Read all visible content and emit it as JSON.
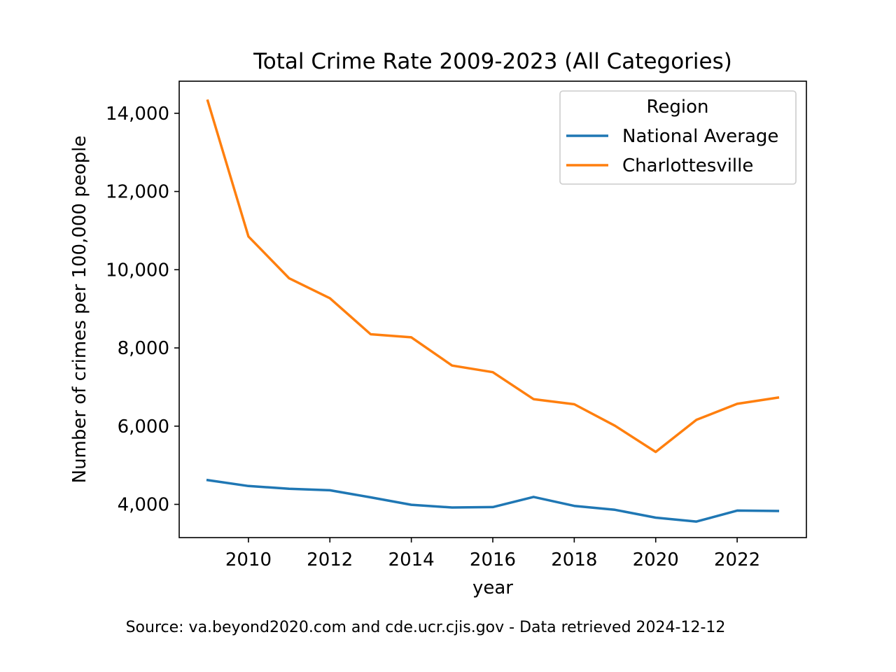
{
  "chart_data": {
    "type": "line",
    "title": "Total Crime Rate 2009-2023 (All Categories)",
    "xlabel": "year",
    "ylabel": "Number of crimes per 100,000 people",
    "x": [
      2009,
      2010,
      2011,
      2012,
      2013,
      2014,
      2015,
      2016,
      2017,
      2018,
      2019,
      2020,
      2021,
      2022,
      2023
    ],
    "xlim": [
      2008.3,
      2023.7
    ],
    "ylim": [
      3150,
      14820
    ],
    "xticks": [
      2010,
      2012,
      2014,
      2016,
      2018,
      2020,
      2022
    ],
    "xtick_labels": [
      "2010",
      "2012",
      "2014",
      "2016",
      "2018",
      "2020",
      "2022"
    ],
    "yticks": [
      4000,
      6000,
      8000,
      10000,
      12000,
      14000
    ],
    "ytick_labels": [
      "4,000",
      "6,000",
      "8,000",
      "10,000",
      "12,000",
      "14,000"
    ],
    "grid": false,
    "legend": {
      "title": "Region",
      "position": "upper right"
    },
    "series": [
      {
        "name": "National Average",
        "color": "#1f77b4",
        "values": [
          4620,
          4470,
          4400,
          4360,
          4180,
          3990,
          3920,
          3930,
          4190,
          3960,
          3860,
          3660,
          3560,
          3840,
          3830
        ]
      },
      {
        "name": "Charlottesville",
        "color": "#ff7f0e",
        "values": [
          14320,
          10850,
          9780,
          9270,
          8350,
          8270,
          7550,
          7380,
          6690,
          6560,
          6010,
          5340,
          6160,
          6570,
          6730
        ]
      }
    ]
  },
  "footer": {
    "source": "Source: va.beyond2020.com and cde.ucr.cjis.gov - Data retrieved 2024-12-12"
  }
}
